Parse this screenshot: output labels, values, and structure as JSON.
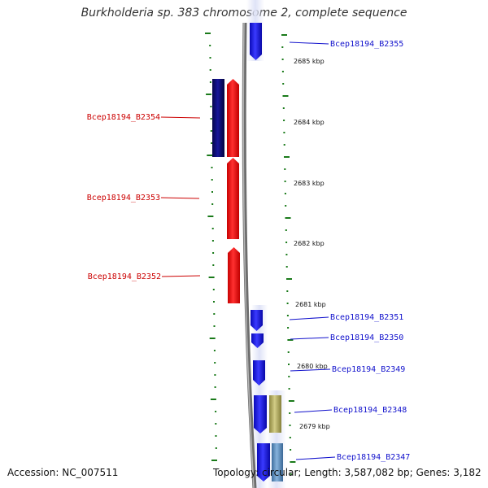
{
  "title": "Burkholderia sp. 383 chromosome 2, complete sequence",
  "footer": {
    "accession": "Accession: NC_007511",
    "summary": "Topology: circular; Length: 3,587,082 bp; Genes: 3,182"
  },
  "colors": {
    "forward_gene": "#1515e6",
    "reverse_gene": "#ee1111",
    "reverse_gene_dark": "#0c0c78",
    "forward_label": "#1111cc",
    "reverse_label": "#cc0000",
    "tick": "#1a7a1a",
    "backbone": "#8a8a8a",
    "khaki_feature": "#b0aa60",
    "steel_feature": "#5f8fc0"
  },
  "scale_labels": [
    "2685 kbp",
    "2684 kbp",
    "2683 kbp",
    "2682 kbp",
    "2681 kbp",
    "2680 kbp",
    "2679 kbp"
  ],
  "genes_forward": [
    {
      "id": "Bcep18194_B2355",
      "label": "Bcep18194_B2355"
    },
    {
      "id": "Bcep18194_B2351",
      "label": "Bcep18194_B2351"
    },
    {
      "id": "Bcep18194_B2350",
      "label": "Bcep18194_B2350"
    },
    {
      "id": "Bcep18194_B2349",
      "label": "Bcep18194_B2349"
    },
    {
      "id": "Bcep18194_B2348",
      "label": "Bcep18194_B2348"
    },
    {
      "id": "Bcep18194_B2347",
      "label": "Bcep18194_B2347"
    }
  ],
  "genes_reverse": [
    {
      "id": "Bcep18194_B2354",
      "label": "Bcep18194_B2354"
    },
    {
      "id": "Bcep18194_B2353",
      "label": "Bcep18194_B2353"
    },
    {
      "id": "Bcep18194_B2352",
      "label": "Bcep18194_B2352"
    }
  ]
}
